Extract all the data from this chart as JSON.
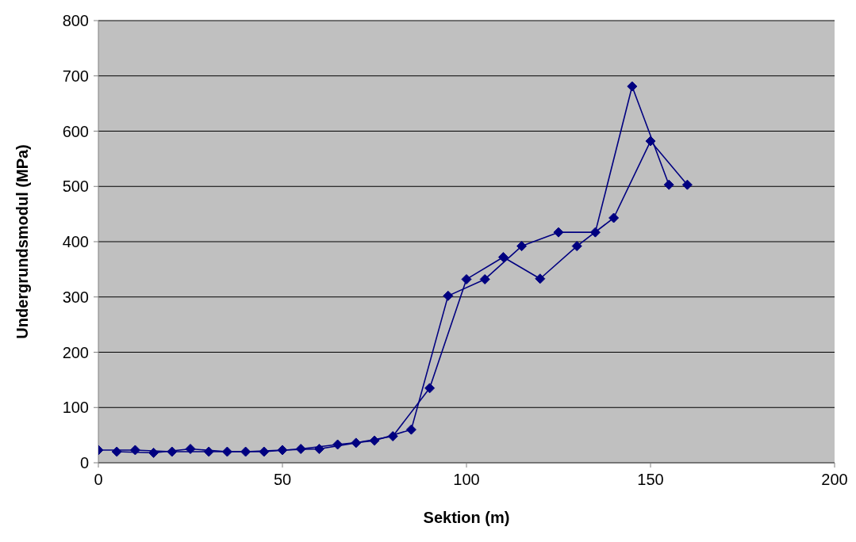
{
  "chart_data": {
    "type": "line",
    "xlabel": "Sektion (m)",
    "ylabel": "Undergrundsmodul (MPa)",
    "xlim": [
      0,
      200
    ],
    "xticks": [
      0,
      50,
      100,
      150,
      200
    ],
    "ylim": [
      0,
      800
    ],
    "yticks": [
      0,
      100,
      200,
      300,
      400,
      500,
      600,
      700,
      800
    ],
    "grid": "y",
    "marker": "diamond",
    "line_style": "solid",
    "series": [
      {
        "color": "#000080",
        "x": [
          0,
          10,
          20,
          30,
          40,
          50,
          60,
          70,
          80,
          90,
          100,
          110,
          120,
          130,
          140,
          150,
          160
        ],
        "values": [
          23,
          23,
          20,
          20,
          20,
          23,
          25,
          36,
          48,
          135,
          332,
          372,
          333,
          392,
          443,
          582,
          503
        ]
      },
      {
        "color": "#000080",
        "x": [
          5,
          15,
          25,
          35,
          45,
          55,
          65,
          75,
          85,
          95,
          105,
          115,
          125,
          135,
          145,
          155
        ],
        "values": [
          20,
          18,
          25,
          20,
          20,
          25,
          33,
          40,
          60,
          302,
          332,
          392,
          417,
          417,
          681,
          503
        ]
      }
    ]
  }
}
